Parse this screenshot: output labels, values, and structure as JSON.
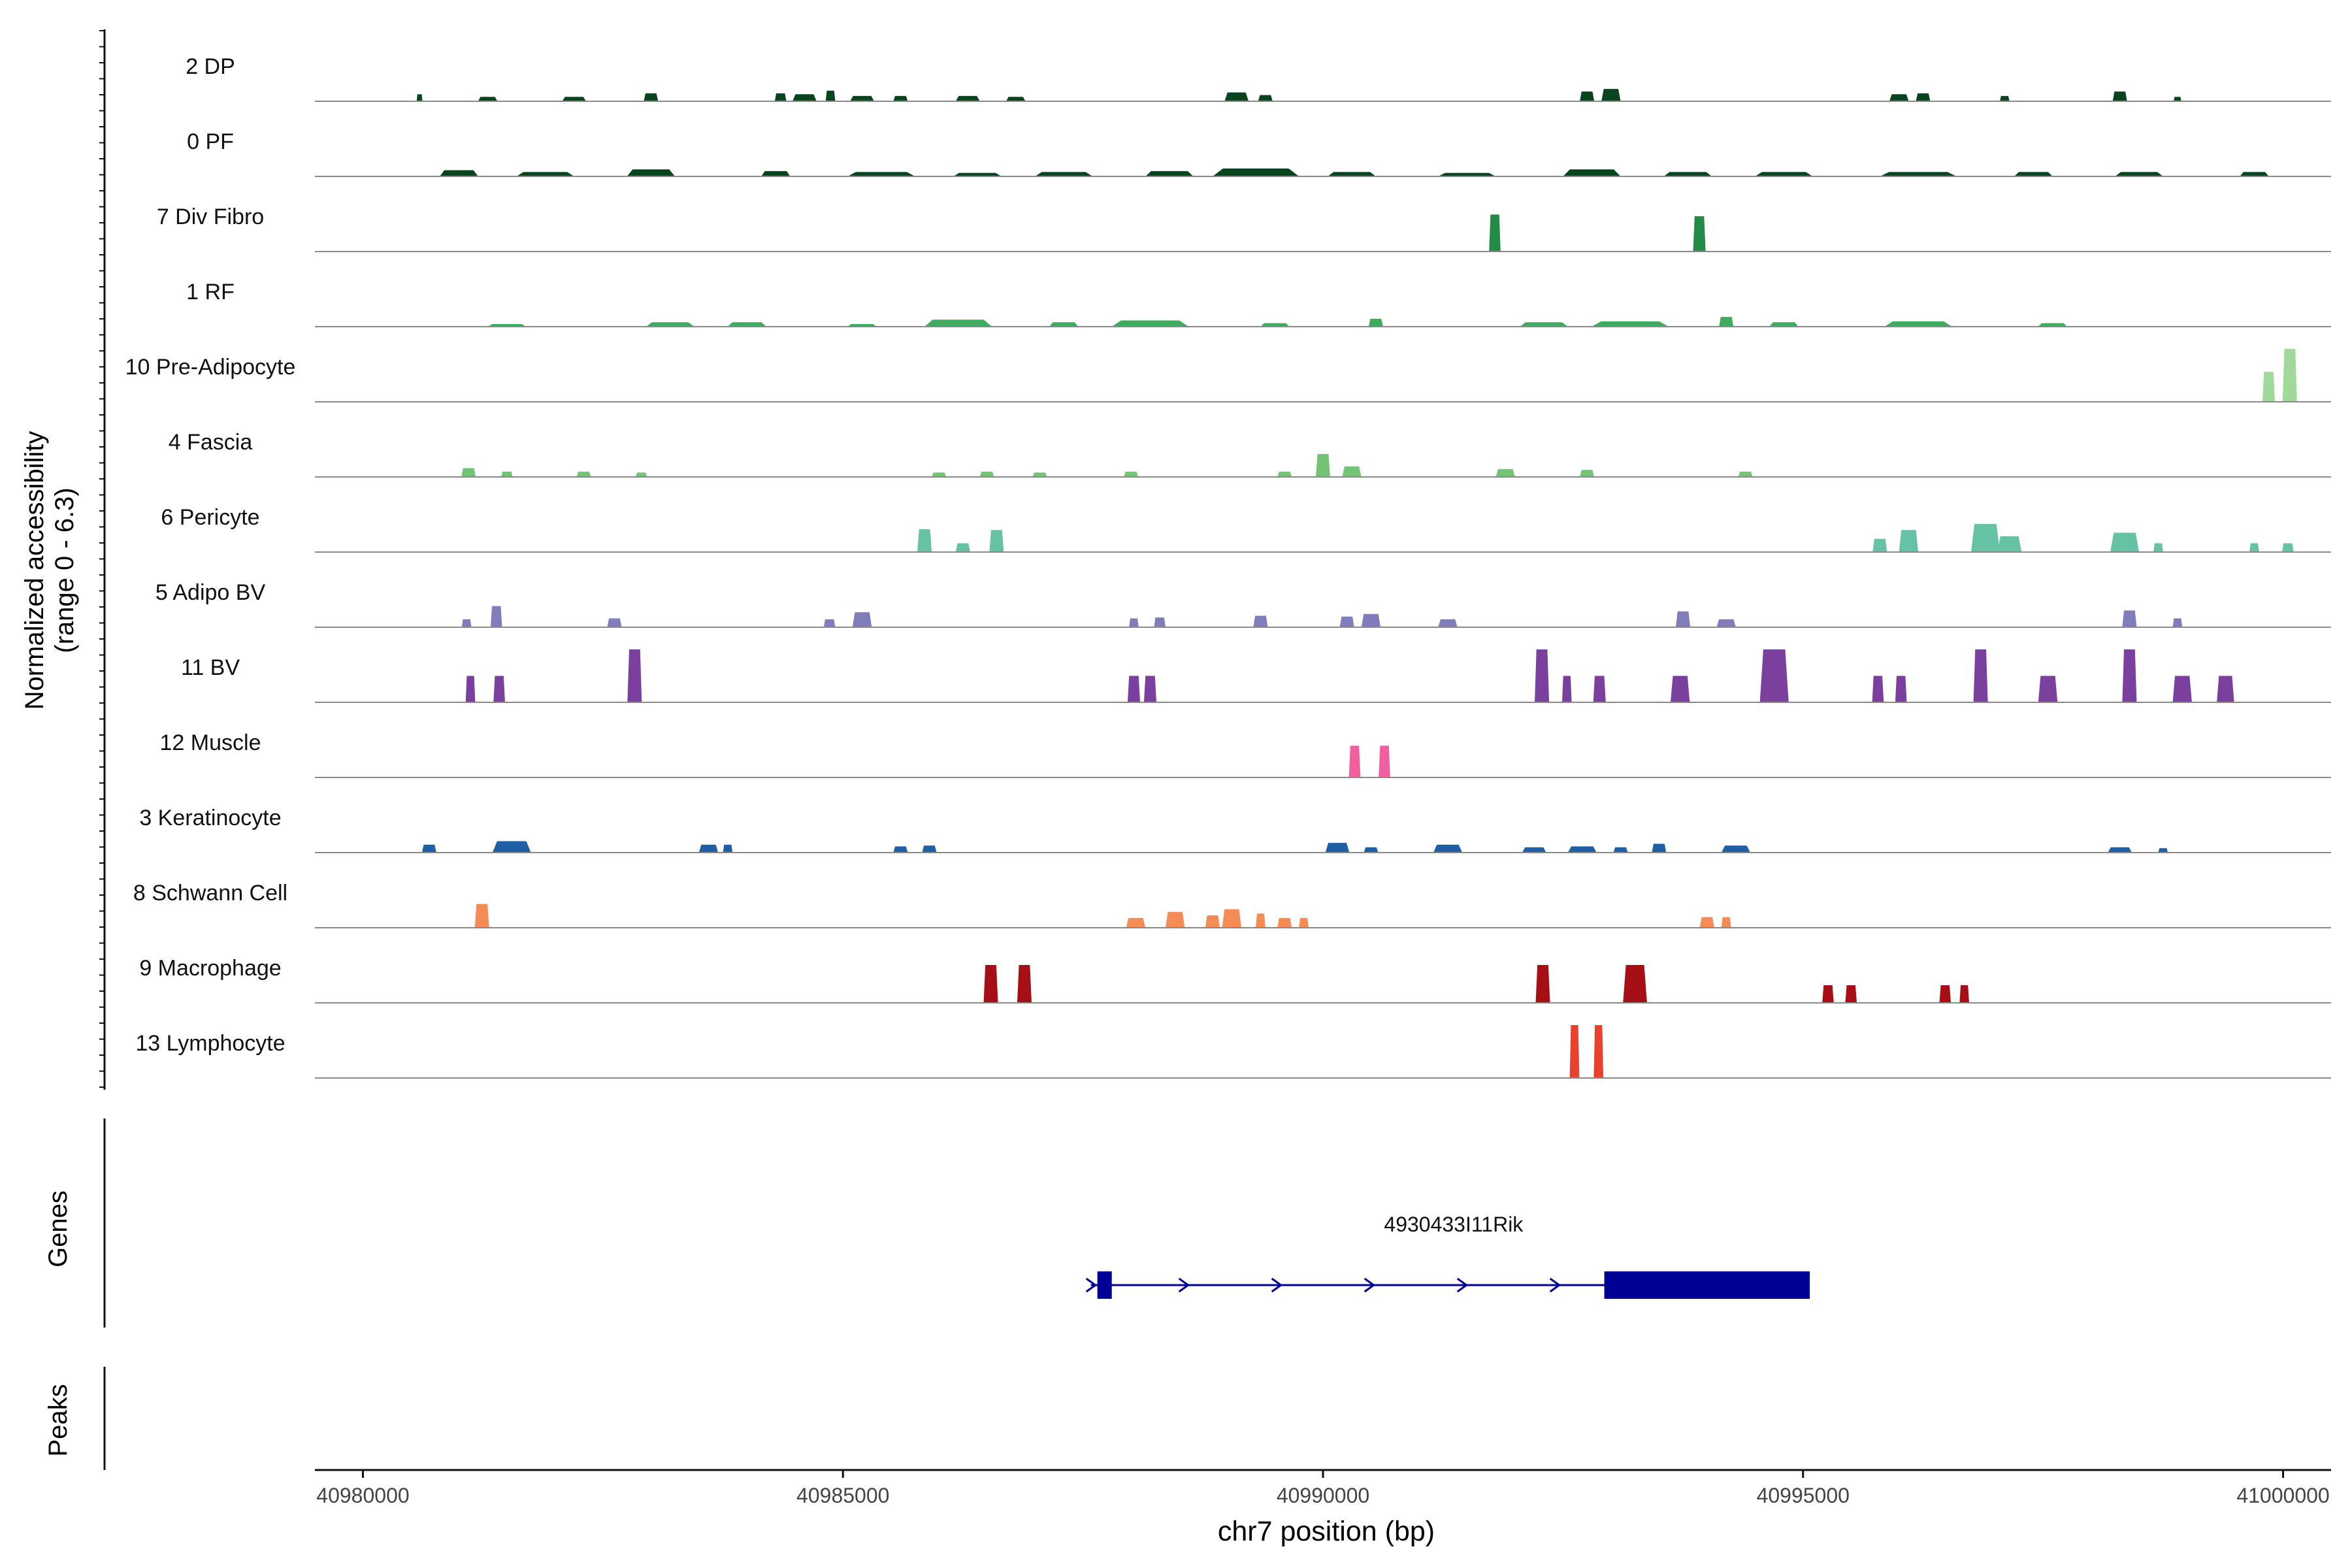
{
  "chart_data": {
    "type": "area",
    "title": "",
    "xlabel": "chr7 position (bp)",
    "ylabel_line1": "Normalized accessibility",
    "ylabel_line2": "(range 0 - 6.3)",
    "xlim": [
      40979500,
      41000500
    ],
    "ylim": [
      0,
      6.3
    ],
    "x_ticks": [
      40980000,
      40985000,
      40990000,
      40995000,
      41000000
    ],
    "x_tick_labels": [
      "40980000",
      "40985000",
      "40990000",
      "40995000",
      "41000000"
    ],
    "genes_label": "Genes",
    "peaks_label": "Peaks",
    "series": [
      {
        "name": "2 DP",
        "color": "#08451f",
        "peaks": [
          [
            40980590,
            60,
            0.8
          ],
          [
            40981300,
            200,
            0.5
          ],
          [
            40982200,
            250,
            0.5
          ],
          [
            40983000,
            150,
            0.9
          ],
          [
            40984350,
            120,
            0.9
          ],
          [
            40984600,
            250,
            0.8
          ],
          [
            40984870,
            100,
            1.2
          ],
          [
            40985200,
            250,
            0.6
          ],
          [
            40985600,
            150,
            0.6
          ],
          [
            40986300,
            250,
            0.6
          ],
          [
            40986800,
            200,
            0.5
          ],
          [
            40989100,
            250,
            1.0
          ],
          [
            40989400,
            150,
            0.7
          ],
          [
            40992750,
            150,
            1.1
          ],
          [
            40993000,
            200,
            1.4
          ],
          [
            40996000,
            200,
            0.8
          ],
          [
            40996250,
            150,
            0.9
          ],
          [
            40997100,
            100,
            0.6
          ],
          [
            40998300,
            150,
            1.1
          ],
          [
            40998900,
            80,
            0.5
          ]
        ]
      },
      {
        "name": "0 PF",
        "color": "#08451f",
        "peaks": [
          [
            40981000,
            400,
            0.7
          ],
          [
            40981900,
            600,
            0.5
          ],
          [
            40983000,
            500,
            0.8
          ],
          [
            40984300,
            300,
            0.6
          ],
          [
            40985400,
            700,
            0.5
          ],
          [
            40986400,
            500,
            0.4
          ],
          [
            40987300,
            600,
            0.5
          ],
          [
            40988400,
            500,
            0.6
          ],
          [
            40989300,
            900,
            0.9
          ],
          [
            40990300,
            500,
            0.5
          ],
          [
            40991500,
            600,
            0.4
          ],
          [
            40992800,
            600,
            0.8
          ],
          [
            40993800,
            500,
            0.5
          ],
          [
            40994800,
            600,
            0.5
          ],
          [
            40996200,
            800,
            0.5
          ],
          [
            40997400,
            400,
            0.5
          ],
          [
            40998500,
            500,
            0.5
          ],
          [
            40999700,
            300,
            0.5
          ]
        ]
      },
      {
        "name": "7 Div Fibro",
        "color": "#238b45",
        "peaks": [
          [
            40991790,
            120,
            4.2
          ],
          [
            40993920,
            130,
            4.0
          ]
        ]
      },
      {
        "name": "1 RF",
        "color": "#41ab5d",
        "peaks": [
          [
            40981500,
            400,
            0.3
          ],
          [
            40983200,
            500,
            0.5
          ],
          [
            40984000,
            400,
            0.5
          ],
          [
            40985200,
            300,
            0.3
          ],
          [
            40986200,
            700,
            0.8
          ],
          [
            40987300,
            300,
            0.5
          ],
          [
            40988200,
            800,
            0.7
          ],
          [
            40989500,
            300,
            0.4
          ],
          [
            40990550,
            150,
            0.9
          ],
          [
            40992300,
            500,
            0.5
          ],
          [
            40993200,
            800,
            0.6
          ],
          [
            40994200,
            150,
            1.1
          ],
          [
            40994800,
            300,
            0.5
          ],
          [
            40996200,
            700,
            0.6
          ],
          [
            40997600,
            300,
            0.4
          ]
        ]
      },
      {
        "name": "10 Pre-Adipocyte",
        "color": "#a1d99b",
        "peaks": [
          [
            40999850,
            130,
            3.4
          ],
          [
            41000070,
            150,
            6.0
          ]
        ]
      },
      {
        "name": "4 Fascia",
        "color": "#74c476",
        "peaks": [
          [
            40981100,
            150,
            1.0
          ],
          [
            40981500,
            120,
            0.6
          ],
          [
            40982300,
            150,
            0.6
          ],
          [
            40982900,
            120,
            0.5
          ],
          [
            40986000,
            150,
            0.5
          ],
          [
            40986500,
            150,
            0.6
          ],
          [
            40987050,
            150,
            0.5
          ],
          [
            40988000,
            150,
            0.6
          ],
          [
            40989600,
            150,
            0.6
          ],
          [
            40990000,
            150,
            2.6
          ],
          [
            40990300,
            200,
            1.2
          ],
          [
            40991900,
            200,
            0.9
          ],
          [
            40992750,
            150,
            0.8
          ],
          [
            40994400,
            150,
            0.6
          ]
        ]
      },
      {
        "name": "6 Pericyte",
        "color": "#66c2a4",
        "peaks": [
          [
            40985850,
            150,
            2.6
          ],
          [
            40986250,
            150,
            1.0
          ],
          [
            40986600,
            150,
            2.5
          ],
          [
            40995800,
            150,
            1.5
          ],
          [
            40996100,
            200,
            2.5
          ],
          [
            40996900,
            300,
            3.2
          ],
          [
            40997150,
            250,
            1.8
          ],
          [
            40998350,
            300,
            2.2
          ],
          [
            40998700,
            100,
            1.0
          ],
          [
            40999700,
            100,
            1.0
          ],
          [
            41000050,
            120,
            1.0
          ]
        ]
      },
      {
        "name": "5 Adipo BV",
        "color": "#807dba",
        "peaks": [
          [
            40981080,
            100,
            0.9
          ],
          [
            40981390,
            120,
            2.4
          ],
          [
            40982620,
            150,
            1.0
          ],
          [
            40984860,
            120,
            0.9
          ],
          [
            40985200,
            200,
            1.7
          ],
          [
            40988030,
            100,
            1.0
          ],
          [
            40988300,
            120,
            1.1
          ],
          [
            40989350,
            150,
            1.3
          ],
          [
            40990250,
            150,
            1.2
          ],
          [
            40990500,
            200,
            1.5
          ],
          [
            40991300,
            200,
            0.9
          ],
          [
            40993750,
            150,
            1.8
          ],
          [
            40994200,
            200,
            0.9
          ],
          [
            40998400,
            150,
            1.9
          ],
          [
            40998900,
            100,
            1.0
          ]
        ]
      },
      {
        "name": "11 BV",
        "color": "#7b3f9e",
        "peaks": [
          [
            40981120,
            100,
            3.0
          ],
          [
            40981420,
            120,
            3.0
          ],
          [
            40982830,
            150,
            6.0
          ],
          [
            40988030,
            130,
            3.0
          ],
          [
            40988200,
            130,
            3.0
          ],
          [
            40992280,
            150,
            6.0
          ],
          [
            40992540,
            100,
            3.0
          ],
          [
            40992880,
            130,
            3.0
          ],
          [
            40993720,
            200,
            3.0
          ],
          [
            40994700,
            300,
            6.0
          ],
          [
            40995780,
            120,
            3.0
          ],
          [
            40996020,
            120,
            3.0
          ],
          [
            40996850,
            150,
            6.0
          ],
          [
            40997550,
            200,
            3.0
          ],
          [
            40998400,
            150,
            6.0
          ],
          [
            40998950,
            200,
            3.0
          ],
          [
            40999400,
            180,
            3.0
          ]
        ]
      },
      {
        "name": "12 Muscle",
        "color": "#f15fa0",
        "peaks": [
          [
            40990330,
            120,
            3.6
          ],
          [
            40990640,
            120,
            3.6
          ]
        ]
      },
      {
        "name": "3 Keratinocyte",
        "color": "#1f5fa6",
        "peaks": [
          [
            40980690,
            150,
            0.9
          ],
          [
            40981550,
            400,
            1.3
          ],
          [
            40983600,
            200,
            0.9
          ],
          [
            40983800,
            100,
            0.9
          ],
          [
            40985600,
            150,
            0.7
          ],
          [
            40985900,
            150,
            0.8
          ],
          [
            40990150,
            250,
            1.1
          ],
          [
            40990500,
            150,
            0.6
          ],
          [
            40991300,
            300,
            0.9
          ],
          [
            40992200,
            250,
            0.6
          ],
          [
            40992700,
            300,
            0.7
          ],
          [
            40993100,
            150,
            0.6
          ],
          [
            40993500,
            150,
            1.0
          ],
          [
            40994300,
            300,
            0.8
          ],
          [
            40998300,
            250,
            0.6
          ],
          [
            40998750,
            100,
            0.5
          ]
        ]
      },
      {
        "name": "8 Schwann Cell",
        "color": "#f58c55",
        "peaks": [
          [
            40981240,
            150,
            2.7
          ],
          [
            40988050,
            200,
            1.1
          ],
          [
            40988460,
            200,
            1.8
          ],
          [
            40988850,
            150,
            1.4
          ],
          [
            40989050,
            200,
            2.1
          ],
          [
            40989350,
            100,
            1.6
          ],
          [
            40989600,
            150,
            1.1
          ],
          [
            40989800,
            100,
            1.1
          ],
          [
            40994000,
            150,
            1.2
          ],
          [
            40994200,
            100,
            1.2
          ]
        ]
      },
      {
        "name": "9 Macrophage",
        "color": "#a50f15",
        "peaks": [
          [
            40986540,
            150,
            4.3
          ],
          [
            40986890,
            150,
            4.3
          ],
          [
            40992290,
            150,
            4.3
          ],
          [
            40993250,
            250,
            4.3
          ],
          [
            40995260,
            120,
            2.0
          ],
          [
            40995500,
            120,
            2.0
          ],
          [
            40996480,
            120,
            2.0
          ],
          [
            40996680,
            100,
            2.0
          ]
        ]
      },
      {
        "name": "13 Lymphocyte",
        "color": "#e8412d",
        "peaks": [
          [
            40992620,
            100,
            6.0
          ],
          [
            40992870,
            100,
            6.0
          ]
        ]
      }
    ],
    "gene": {
      "name": "4930433I11Rik",
      "strand": "+",
      "start": 40987650,
      "end": 40995070,
      "exon1": [
        40987650,
        40987800
      ],
      "exon2": [
        40992930,
        40995070
      ],
      "color": "#000094"
    }
  }
}
